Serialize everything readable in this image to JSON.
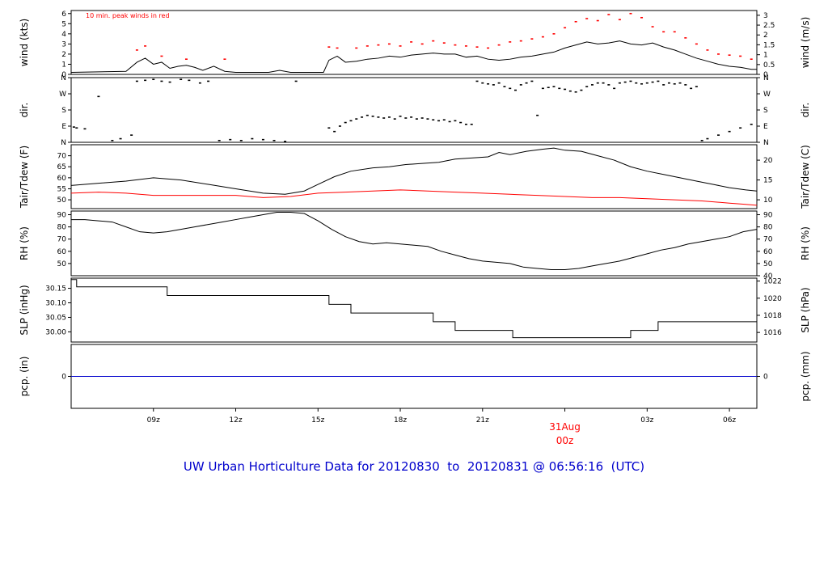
{
  "title": "UW Urban Horticulture Data for 20120830  to  20120831 @ 06:56:16  (UTC)",
  "colors": {
    "title": "#0000cc",
    "peak": "#ff0000",
    "dew": "#ff0000",
    "precip": "#0000cc",
    "line": "#000000"
  },
  "date_marker": {
    "day": "31Aug",
    "hour": "00z"
  },
  "time_axis": {
    "start_hour": 6.0,
    "end_hour": 31.0,
    "ticks": [
      {
        "label": "09z",
        "hour": 9
      },
      {
        "label": "12z",
        "hour": 12
      },
      {
        "label": "15z",
        "hour": 15
      },
      {
        "label": "18z",
        "hour": 18
      },
      {
        "label": "21z",
        "hour": 21
      },
      {
        "label": "",
        "hour": 24
      },
      {
        "label": "03z",
        "hour": 27
      },
      {
        "label": "06z",
        "hour": 30
      }
    ]
  },
  "chart_data": [
    {
      "type": "line",
      "id": "wind",
      "ylabel": "wind (kts)",
      "ylabel_right": "wind (m/s)",
      "ylim": [
        0,
        6.3
      ],
      "left_ticks": [
        "0",
        "1",
        "2",
        "3",
        "4",
        "5",
        "6"
      ],
      "right_ticks": [
        [
          "0",
          0
        ],
        [
          "0.5",
          0.97
        ],
        [
          "1",
          1.94
        ],
        [
          "1.5",
          2.92
        ],
        [
          "2",
          3.89
        ],
        [
          "2.5",
          4.86
        ],
        [
          "3",
          5.83
        ]
      ],
      "annotation": "10 min. peak winds in red",
      "series": [
        {
          "name": "",
          "x": [
            6.0,
            8.0,
            8.4,
            8.7,
            9.0,
            9.3,
            9.6,
            9.9,
            10.2,
            10.5,
            10.8,
            11.2,
            11.6,
            12.0,
            12.6,
            13.2,
            13.6,
            14.0,
            14.6,
            15.2,
            15.4,
            15.7,
            16.0,
            16.4,
            16.8,
            17.2,
            17.6,
            18.0,
            18.4,
            18.8,
            19.2,
            19.6,
            20.0,
            20.4,
            20.8,
            21.2,
            21.6,
            22.0,
            22.4,
            22.8,
            23.2,
            23.6,
            24.0,
            24.4,
            24.8,
            25.2,
            25.6,
            26.0,
            26.4,
            26.8,
            27.2,
            27.6,
            28.0,
            28.4,
            28.8,
            29.2,
            29.6,
            30.0,
            30.4,
            30.8,
            31.0
          ],
          "y": [
            0.2,
            0.3,
            1.2,
            1.6,
            1.0,
            1.2,
            0.6,
            0.8,
            0.9,
            0.7,
            0.4,
            0.8,
            0.3,
            0.2,
            0.2,
            0.2,
            0.4,
            0.2,
            0.2,
            0.2,
            1.4,
            1.8,
            1.2,
            1.3,
            1.5,
            1.6,
            1.8,
            1.7,
            1.9,
            2.0,
            2.1,
            2.0,
            2.0,
            1.7,
            1.8,
            1.5,
            1.4,
            1.5,
            1.7,
            1.8,
            2.0,
            2.2,
            2.6,
            2.9,
            3.2,
            3.0,
            3.1,
            3.3,
            3.0,
            2.9,
            3.1,
            2.7,
            2.4,
            2.0,
            1.6,
            1.3,
            1.0,
            0.8,
            0.7,
            0.5,
            0.5
          ]
        },
        {
          "name": "",
          "style": "dots",
          "color": "#ff0000",
          "x": [
            8.4,
            8.7,
            9.3,
            10.2,
            11.6,
            15.4,
            15.7,
            16.4,
            16.8,
            17.2,
            17.6,
            18.0,
            18.4,
            18.8,
            19.2,
            19.6,
            20.0,
            20.4,
            20.8,
            21.2,
            21.6,
            22.0,
            22.4,
            22.8,
            23.2,
            23.6,
            24.0,
            24.4,
            24.8,
            25.2,
            25.6,
            26.0,
            26.4,
            26.8,
            27.2,
            27.6,
            28.0,
            28.4,
            28.8,
            29.2,
            29.6,
            30.0,
            30.4,
            30.8
          ],
          "y": [
            2.4,
            2.8,
            1.8,
            1.5,
            1.5,
            2.7,
            2.6,
            2.6,
            2.8,
            2.9,
            3.0,
            2.8,
            3.2,
            3.0,
            3.3,
            3.1,
            2.9,
            2.8,
            2.7,
            2.6,
            2.9,
            3.2,
            3.3,
            3.5,
            3.7,
            4.0,
            4.6,
            5.2,
            5.5,
            5.3,
            5.9,
            5.4,
            6.0,
            5.6,
            4.7,
            4.2,
            4.2,
            3.6,
            3.0,
            2.4,
            2.0,
            1.9,
            1.8,
            1.5
          ]
        }
      ]
    },
    {
      "type": "scatter",
      "id": "direction",
      "ylabel": "dir.",
      "ylabel_right": "dir.",
      "ylim": [
        0,
        360
      ],
      "left_ticks": [
        [
          "N",
          0
        ],
        [
          "E",
          90
        ],
        [
          "S",
          180
        ],
        [
          "W",
          270
        ],
        [
          "N",
          360
        ]
      ],
      "right_ticks": [
        [
          "N",
          0
        ],
        [
          "E",
          90
        ],
        [
          "S",
          180
        ],
        [
          "W",
          270
        ],
        [
          "N",
          360
        ]
      ],
      "series": [
        {
          "name": "",
          "x": [
            6.1,
            6.2,
            6.5,
            7.0,
            7.5,
            7.8,
            8.2,
            8.4,
            8.7,
            9.0,
            9.3,
            9.6,
            10.0,
            10.3,
            10.7,
            11.0,
            11.4,
            11.8,
            12.2,
            12.6,
            13.0,
            13.4,
            13.8,
            14.2,
            15.4,
            15.6,
            15.8,
            16.0,
            16.2,
            16.4,
            16.6,
            16.8,
            17.0,
            17.2,
            17.4,
            17.6,
            17.8,
            18.0,
            18.2,
            18.4,
            18.6,
            18.8,
            19.0,
            19.2,
            19.4,
            19.6,
            19.8,
            20.0,
            20.2,
            20.4,
            20.6,
            20.8,
            21.0,
            21.2,
            21.4,
            21.6,
            21.8,
            22.0,
            22.2,
            22.4,
            22.6,
            22.8,
            23.0,
            23.2,
            23.4,
            23.6,
            23.8,
            24.0,
            24.2,
            24.4,
            24.6,
            24.8,
            25.0,
            25.2,
            25.4,
            25.6,
            25.8,
            26.0,
            26.2,
            26.4,
            26.6,
            26.8,
            27.0,
            27.2,
            27.4,
            27.6,
            27.8,
            28.0,
            28.2,
            28.4,
            28.6,
            28.8,
            29.0,
            29.2,
            29.6,
            30.0,
            30.4,
            30.8
          ],
          "y": [
            85,
            80,
            75,
            255,
            10,
            20,
            40,
            340,
            345,
            350,
            340,
            335,
            350,
            345,
            330,
            340,
            10,
            15,
            10,
            20,
            15,
            10,
            5,
            340,
            80,
            60,
            90,
            110,
            120,
            130,
            140,
            150,
            145,
            140,
            135,
            140,
            130,
            145,
            135,
            140,
            130,
            135,
            130,
            125,
            120,
            125,
            115,
            120,
            110,
            100,
            100,
            340,
            330,
            325,
            320,
            330,
            310,
            300,
            290,
            320,
            330,
            340,
            150,
            300,
            305,
            310,
            300,
            295,
            285,
            280,
            290,
            310,
            320,
            330,
            330,
            320,
            300,
            330,
            335,
            340,
            330,
            325,
            330,
            335,
            340,
            320,
            330,
            325,
            330,
            320,
            300,
            310,
            10,
            20,
            40,
            60,
            80,
            100
          ]
        }
      ]
    },
    {
      "type": "line",
      "id": "temperature",
      "ylabel": "Tair/Tdew (F)",
      "ylabel_right": "Tair/Tdew (C)",
      "ylim": [
        46,
        75
      ],
      "left_ticks": [
        [
          "50",
          50
        ],
        [
          "55",
          55
        ],
        [
          "60",
          60
        ],
        [
          "65",
          65
        ],
        [
          "70",
          70
        ]
      ],
      "right_ticks": [
        [
          "10",
          50
        ],
        [
          "15",
          59
        ],
        [
          "20",
          68
        ]
      ],
      "series": [
        {
          "name": "",
          "x": [
            6.0,
            7.0,
            8.0,
            9.0,
            10.0,
            11.0,
            12.0,
            13.0,
            13.8,
            14.5,
            15.0,
            15.6,
            16.2,
            17.0,
            17.6,
            18.2,
            18.8,
            19.4,
            20.0,
            20.6,
            21.2,
            21.6,
            22.0,
            22.6,
            23.2,
            23.6,
            24.0,
            24.6,
            25.2,
            25.8,
            26.4,
            27.0,
            27.6,
            28.2,
            28.8,
            29.4,
            30.0,
            30.6,
            31.0
          ],
          "y": [
            56.5,
            57.5,
            58.5,
            60.0,
            59.0,
            57.0,
            55.0,
            53.0,
            52.5,
            54.0,
            57.0,
            60.5,
            63.0,
            64.5,
            65.0,
            66.0,
            66.5,
            67.0,
            68.5,
            69.0,
            69.5,
            71.5,
            70.5,
            72.0,
            73.0,
            73.5,
            72.5,
            72.0,
            70.0,
            68.0,
            65.0,
            63.0,
            61.5,
            60.0,
            58.5,
            57.0,
            55.5,
            54.5,
            54.0
          ]
        },
        {
          "name": "",
          "color": "#ff0000",
          "x": [
            6.0,
            7.0,
            8.0,
            9.0,
            10.0,
            11.0,
            12.0,
            13.0,
            14.0,
            15.0,
            16.0,
            17.0,
            18.0,
            19.0,
            20.0,
            21.0,
            22.0,
            23.0,
            24.0,
            25.0,
            26.0,
            27.0,
            28.0,
            29.0,
            30.0,
            30.5,
            31.0
          ],
          "y": [
            53.0,
            53.5,
            53.0,
            52.0,
            52.0,
            52.0,
            52.0,
            51.0,
            51.5,
            53.0,
            53.5,
            54.0,
            54.5,
            54.0,
            53.5,
            53.0,
            52.5,
            52.0,
            51.5,
            51.0,
            51.0,
            50.5,
            50.0,
            49.5,
            48.5,
            48.0,
            47.5
          ]
        }
      ]
    },
    {
      "type": "line",
      "id": "humidity",
      "ylabel": "RH (%)",
      "ylabel_right": "RH (%)",
      "ylim": [
        40,
        93
      ],
      "left_ticks": [
        [
          "50",
          50
        ],
        [
          "60",
          60
        ],
        [
          "70",
          70
        ],
        [
          "80",
          80
        ],
        [
          "90",
          90
        ]
      ],
      "right_ticks": [
        [
          "40",
          40
        ],
        [
          "50",
          50
        ],
        [
          "60",
          60
        ],
        [
          "70",
          70
        ],
        [
          "80",
          80
        ],
        [
          "90",
          90
        ]
      ],
      "series": [
        {
          "name": "",
          "x": [
            6.0,
            6.5,
            7.0,
            7.5,
            8.0,
            8.5,
            9.0,
            9.5,
            10.0,
            10.5,
            11.0,
            11.5,
            12.0,
            12.5,
            13.0,
            13.5,
            14.0,
            14.5,
            15.0,
            15.5,
            16.0,
            16.5,
            17.0,
            17.5,
            18.0,
            18.5,
            19.0,
            19.5,
            20.0,
            20.5,
            21.0,
            21.5,
            22.0,
            22.5,
            23.0,
            23.5,
            24.0,
            24.5,
            25.0,
            25.5,
            26.0,
            26.5,
            27.0,
            27.5,
            28.0,
            28.5,
            29.0,
            29.5,
            30.0,
            30.5,
            31.0
          ],
          "y": [
            86,
            86,
            85,
            84,
            80,
            76,
            75,
            76,
            78,
            80,
            82,
            84,
            86,
            88,
            90,
            92,
            92,
            91,
            85,
            78,
            72,
            68,
            66,
            67,
            66,
            65,
            64,
            60,
            57,
            54,
            52,
            51,
            50,
            47,
            46,
            45,
            45,
            46,
            48,
            50,
            52,
            55,
            58,
            61,
            63,
            66,
            68,
            70,
            72,
            76,
            78
          ]
        }
      ]
    },
    {
      "type": "line",
      "id": "pressure",
      "ylabel": "SLP (inHg)",
      "ylabel_right": "SLP (hPa)",
      "ylim": [
        29.965,
        30.185
      ],
      "left_ticks": [
        [
          "30.00",
          30.0
        ],
        [
          "30.05",
          30.05
        ],
        [
          "30.10",
          30.1
        ],
        [
          "30.15",
          30.15
        ]
      ],
      "right_ticks": [
        [
          "1016",
          29.998
        ],
        [
          "1018",
          30.057
        ],
        [
          "1020",
          30.116
        ],
        [
          "1022",
          30.175
        ]
      ],
      "series": [
        {
          "name": "",
          "step": true,
          "x": [
            6.0,
            6.2,
            9.5,
            15.4,
            16.2,
            19.2,
            20.0,
            22.1,
            26.4,
            27.4,
            31.0
          ],
          "y": [
            30.18,
            30.155,
            30.125,
            30.095,
            30.065,
            30.035,
            30.005,
            29.98,
            30.005,
            30.035,
            30.035
          ]
        }
      ]
    },
    {
      "type": "line",
      "id": "precip",
      "ylabel": "pcp. (in)",
      "ylabel_right": "pcp. (mm)",
      "ylim": [
        -1,
        1
      ],
      "left_ticks": [
        [
          "0",
          0
        ]
      ],
      "right_ticks": [
        [
          "0",
          0
        ]
      ],
      "series": [
        {
          "name": "",
          "color": "#0000cc",
          "x": [
            6.0,
            31.0
          ],
          "y": [
            0,
            0
          ]
        }
      ]
    }
  ]
}
